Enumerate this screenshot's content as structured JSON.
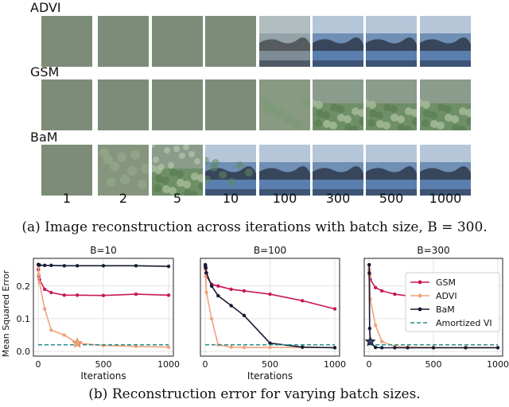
{
  "figure_a": {
    "rows": [
      {
        "label": "ADVI",
        "tiles": [
          "flat",
          "flat",
          "flat",
          "flat",
          "blurry",
          "clear",
          "clear",
          "clear"
        ]
      },
      {
        "label": "GSM",
        "tiles": [
          "flat",
          "flat",
          "flat",
          "flat",
          "faint-green",
          "green",
          "green",
          "green"
        ]
      },
      {
        "label": "BaM",
        "tiles": [
          "flat",
          "faint",
          "green-texture",
          "blue-green",
          "clear",
          "clear",
          "clear",
          "clear"
        ]
      }
    ],
    "iterations": [
      "1",
      "2",
      "5",
      "10",
      "100",
      "300",
      "500",
      "1000"
    ],
    "caption": "(a) Image reconstruction across iterations with batch size, B = 300."
  },
  "colors": {
    "GSM": "#c8185a",
    "ADVI": "#f2a27c",
    "BaM": "#141a33",
    "Amortized VI": "#268f8a",
    "flat_tile": "#7c8c78"
  },
  "figure_b": {
    "caption": "(b) Reconstruction error for varying batch sizes."
  },
  "chart_data": [
    {
      "type": "line",
      "title": "B=10",
      "xlabel": "Iterations",
      "ylabel": "Mean Squared Error",
      "xlim": [
        0,
        1000
      ],
      "ylim": [
        0,
        0.27
      ],
      "xticks": [
        "0",
        "500",
        "1000"
      ],
      "yticks": [
        "0.0",
        "0.1",
        "0.2"
      ],
      "grid": true,
      "series": [
        {
          "name": "GSM",
          "x": [
            1,
            2,
            5,
            10,
            50,
            100,
            200,
            300,
            500,
            750,
            1000
          ],
          "y": [
            0.265,
            0.25,
            0.23,
            0.22,
            0.19,
            0.18,
            0.172,
            0.172,
            0.171,
            0.175,
            0.172
          ]
        },
        {
          "name": "ADVI",
          "x": [
            1,
            2,
            5,
            10,
            50,
            100,
            200,
            300,
            500,
            750,
            1000
          ],
          "y": [
            0.265,
            0.26,
            0.235,
            0.21,
            0.13,
            0.065,
            0.05,
            0.025,
            0.018,
            0.015,
            0.013
          ]
        },
        {
          "name": "BaM",
          "x": [
            1,
            2,
            5,
            10,
            50,
            100,
            200,
            300,
            500,
            750,
            1000
          ],
          "y": [
            0.266,
            0.265,
            0.265,
            0.264,
            0.263,
            0.263,
            0.262,
            0.262,
            0.262,
            0.262,
            0.26
          ]
        },
        {
          "name": "Amortized VI",
          "style": "dashed",
          "x": [
            0,
            1000
          ],
          "y": [
            0.02,
            0.02
          ]
        }
      ],
      "marker": {
        "series": "ADVI",
        "x": 300,
        "y": 0.025,
        "shape": "star"
      }
    },
    {
      "type": "line",
      "title": "B=100",
      "xlabel": "Iterations",
      "xlim": [
        0,
        1000
      ],
      "ylim": [
        0,
        0.27
      ],
      "xticks": [
        "0",
        "500",
        "1000"
      ],
      "grid": true,
      "series": [
        {
          "name": "GSM",
          "x": [
            1,
            2,
            5,
            10,
            50,
            100,
            200,
            300,
            500,
            750,
            1000
          ],
          "y": [
            0.265,
            0.255,
            0.24,
            0.23,
            0.205,
            0.2,
            0.19,
            0.185,
            0.175,
            0.155,
            0.13
          ]
        },
        {
          "name": "ADVI",
          "x": [
            1,
            2,
            5,
            10,
            50,
            100,
            200,
            300,
            500,
            750,
            1000
          ],
          "y": [
            0.26,
            0.25,
            0.23,
            0.18,
            0.1,
            0.02,
            0.013,
            0.012,
            0.012,
            0.012,
            0.012
          ]
        },
        {
          "name": "BaM",
          "x": [
            1,
            2,
            5,
            10,
            50,
            100,
            200,
            300,
            500,
            750,
            1000
          ],
          "y": [
            0.265,
            0.26,
            0.255,
            0.24,
            0.2,
            0.17,
            0.14,
            0.11,
            0.025,
            0.013,
            0.011
          ]
        },
        {
          "name": "Amortized VI",
          "style": "dashed",
          "x": [
            0,
            1000
          ],
          "y": [
            0.02,
            0.02
          ]
        }
      ]
    },
    {
      "type": "line",
      "title": "B=300",
      "xlabel": "",
      "xlim": [
        0,
        1000
      ],
      "ylim": [
        0,
        0.27
      ],
      "xticks": [
        "0",
        "500",
        "1000"
      ],
      "grid": true,
      "legend": {
        "position": "top-right",
        "entries": [
          "GSM",
          "ADVI",
          "BaM",
          "Amortized VI"
        ]
      },
      "series": [
        {
          "name": "GSM",
          "x": [
            1,
            2,
            5,
            10,
            50,
            100,
            200,
            300,
            500,
            750,
            1000
          ],
          "y": [
            0.265,
            0.25,
            0.235,
            0.22,
            0.195,
            0.185,
            0.175,
            0.17,
            0.165,
            0.15,
            0.13
          ]
        },
        {
          "name": "ADVI",
          "x": [
            1,
            2,
            5,
            10,
            50,
            100,
            200,
            300,
            500,
            750,
            1000
          ],
          "y": [
            0.262,
            0.25,
            0.23,
            0.16,
            0.08,
            0.03,
            0.015,
            0.013,
            0.012,
            0.012,
            0.012
          ]
        },
        {
          "name": "BaM",
          "x": [
            1,
            2,
            5,
            10,
            50,
            100,
            200,
            300,
            500,
            750,
            1000
          ],
          "y": [
            0.265,
            0.24,
            0.07,
            0.03,
            0.012,
            0.011,
            0.011,
            0.011,
            0.011,
            0.011,
            0.011
          ]
        },
        {
          "name": "Amortized VI",
          "style": "dashed",
          "x": [
            0,
            1000
          ],
          "y": [
            0.02,
            0.02
          ]
        }
      ],
      "marker": {
        "series": "BaM",
        "x": 10,
        "y": 0.03,
        "shape": "star"
      }
    }
  ]
}
